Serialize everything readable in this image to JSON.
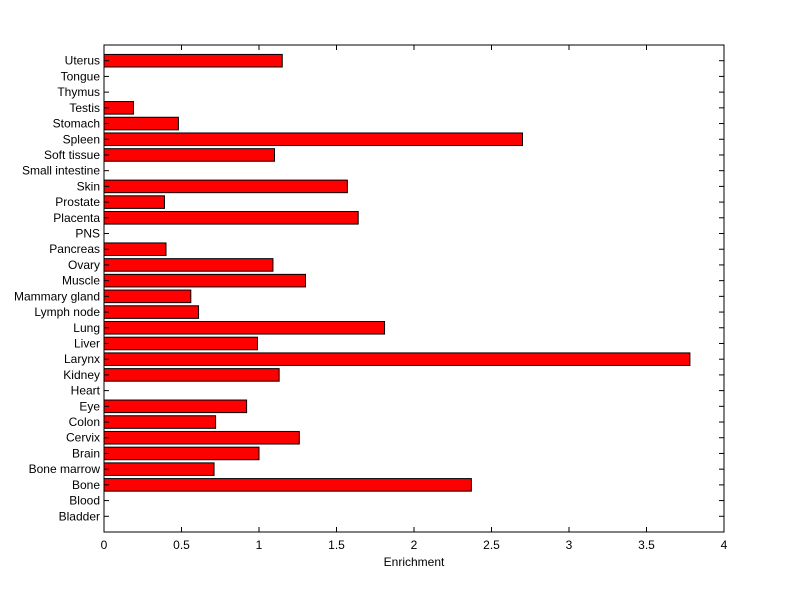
{
  "chart_data": {
    "type": "bar",
    "orientation": "horizontal",
    "title": "",
    "xlabel": "Enrichment",
    "ylabel": "",
    "xlim": [
      0,
      4
    ],
    "xticks": [
      "0",
      "0.5",
      "1",
      "1.5",
      "2",
      "2.5",
      "3",
      "3.5",
      "4"
    ],
    "grid": false,
    "legend": "none",
    "bar_color": "#ff0000",
    "bar_edge_color": "#000000",
    "categories": [
      "Bladder",
      "Blood",
      "Bone",
      "Bone marrow",
      "Brain",
      "Cervix",
      "Colon",
      "Eye",
      "Heart",
      "Kidney",
      "Larynx",
      "Liver",
      "Lung",
      "Lymph node",
      "Mammary gland",
      "Muscle",
      "Ovary",
      "Pancreas",
      "PNS",
      "Placenta",
      "Prostate",
      "Skin",
      "Small intestine",
      "Soft tissue",
      "Spleen",
      "Stomach",
      "Testis",
      "Thymus",
      "Tongue",
      "Uterus"
    ],
    "values": [
      0,
      0,
      2.37,
      0.71,
      1.0,
      1.26,
      0.72,
      0.92,
      0,
      1.13,
      3.78,
      0.99,
      1.81,
      0.61,
      0.56,
      1.3,
      1.09,
      0.4,
      0,
      1.64,
      0.39,
      1.57,
      0,
      1.1,
      2.7,
      0.48,
      0.19,
      0,
      0,
      1.15
    ]
  }
}
